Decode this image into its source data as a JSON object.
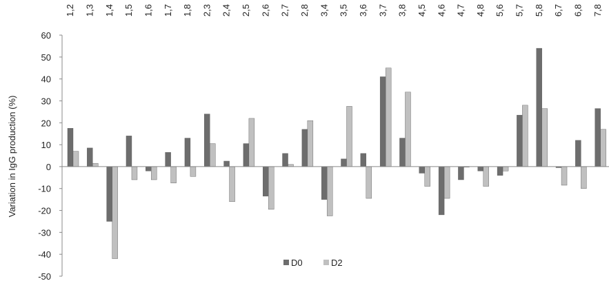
{
  "chart_data": {
    "type": "bar",
    "title": "",
    "xlabel": "",
    "ylabel": "Variation in IgG production (%)",
    "ylim": [
      -50,
      60
    ],
    "yticks": [
      60,
      50,
      40,
      30,
      20,
      10,
      0,
      -10,
      -20,
      -30,
      -40,
      -50
    ],
    "grid": false,
    "legend_position": "bottom-center",
    "x_tick_position": "top",
    "categories": [
      "1,2",
      "1,3",
      "1,4",
      "1,5",
      "1,6",
      "1,7",
      "1,8",
      "2,3",
      "2,4",
      "2,5",
      "2,6",
      "2,7",
      "2,8",
      "3,4",
      "3,5",
      "3,6",
      "3,7",
      "3,8",
      "4,5",
      "4,6",
      "4,7",
      "4,8",
      "5,6",
      "5,7",
      "5,8",
      "6,7",
      "6,8",
      "7,8"
    ],
    "series": [
      {
        "name": "D0",
        "color": "#6d6d6d",
        "values": [
          17.5,
          8.5,
          -25,
          14,
          -2,
          6.5,
          13,
          24,
          2.5,
          10.5,
          -13.5,
          6,
          17,
          -15,
          3.5,
          6,
          41,
          13,
          -3,
          -22,
          -6,
          -2,
          -4,
          23.5,
          54,
          -0.5,
          12,
          26.5
        ]
      },
      {
        "name": "D2",
        "color": "#c0c0c0",
        "values": [
          7,
          1.5,
          -42,
          -6,
          -6,
          -7.5,
          -4.5,
          10.5,
          -16,
          22,
          -19.5,
          1,
          21,
          -22.5,
          27.5,
          -14.5,
          45,
          34,
          -9,
          -14.5,
          0,
          -9,
          -2,
          28,
          26.5,
          -8.5,
          -10,
          17
        ]
      }
    ]
  }
}
